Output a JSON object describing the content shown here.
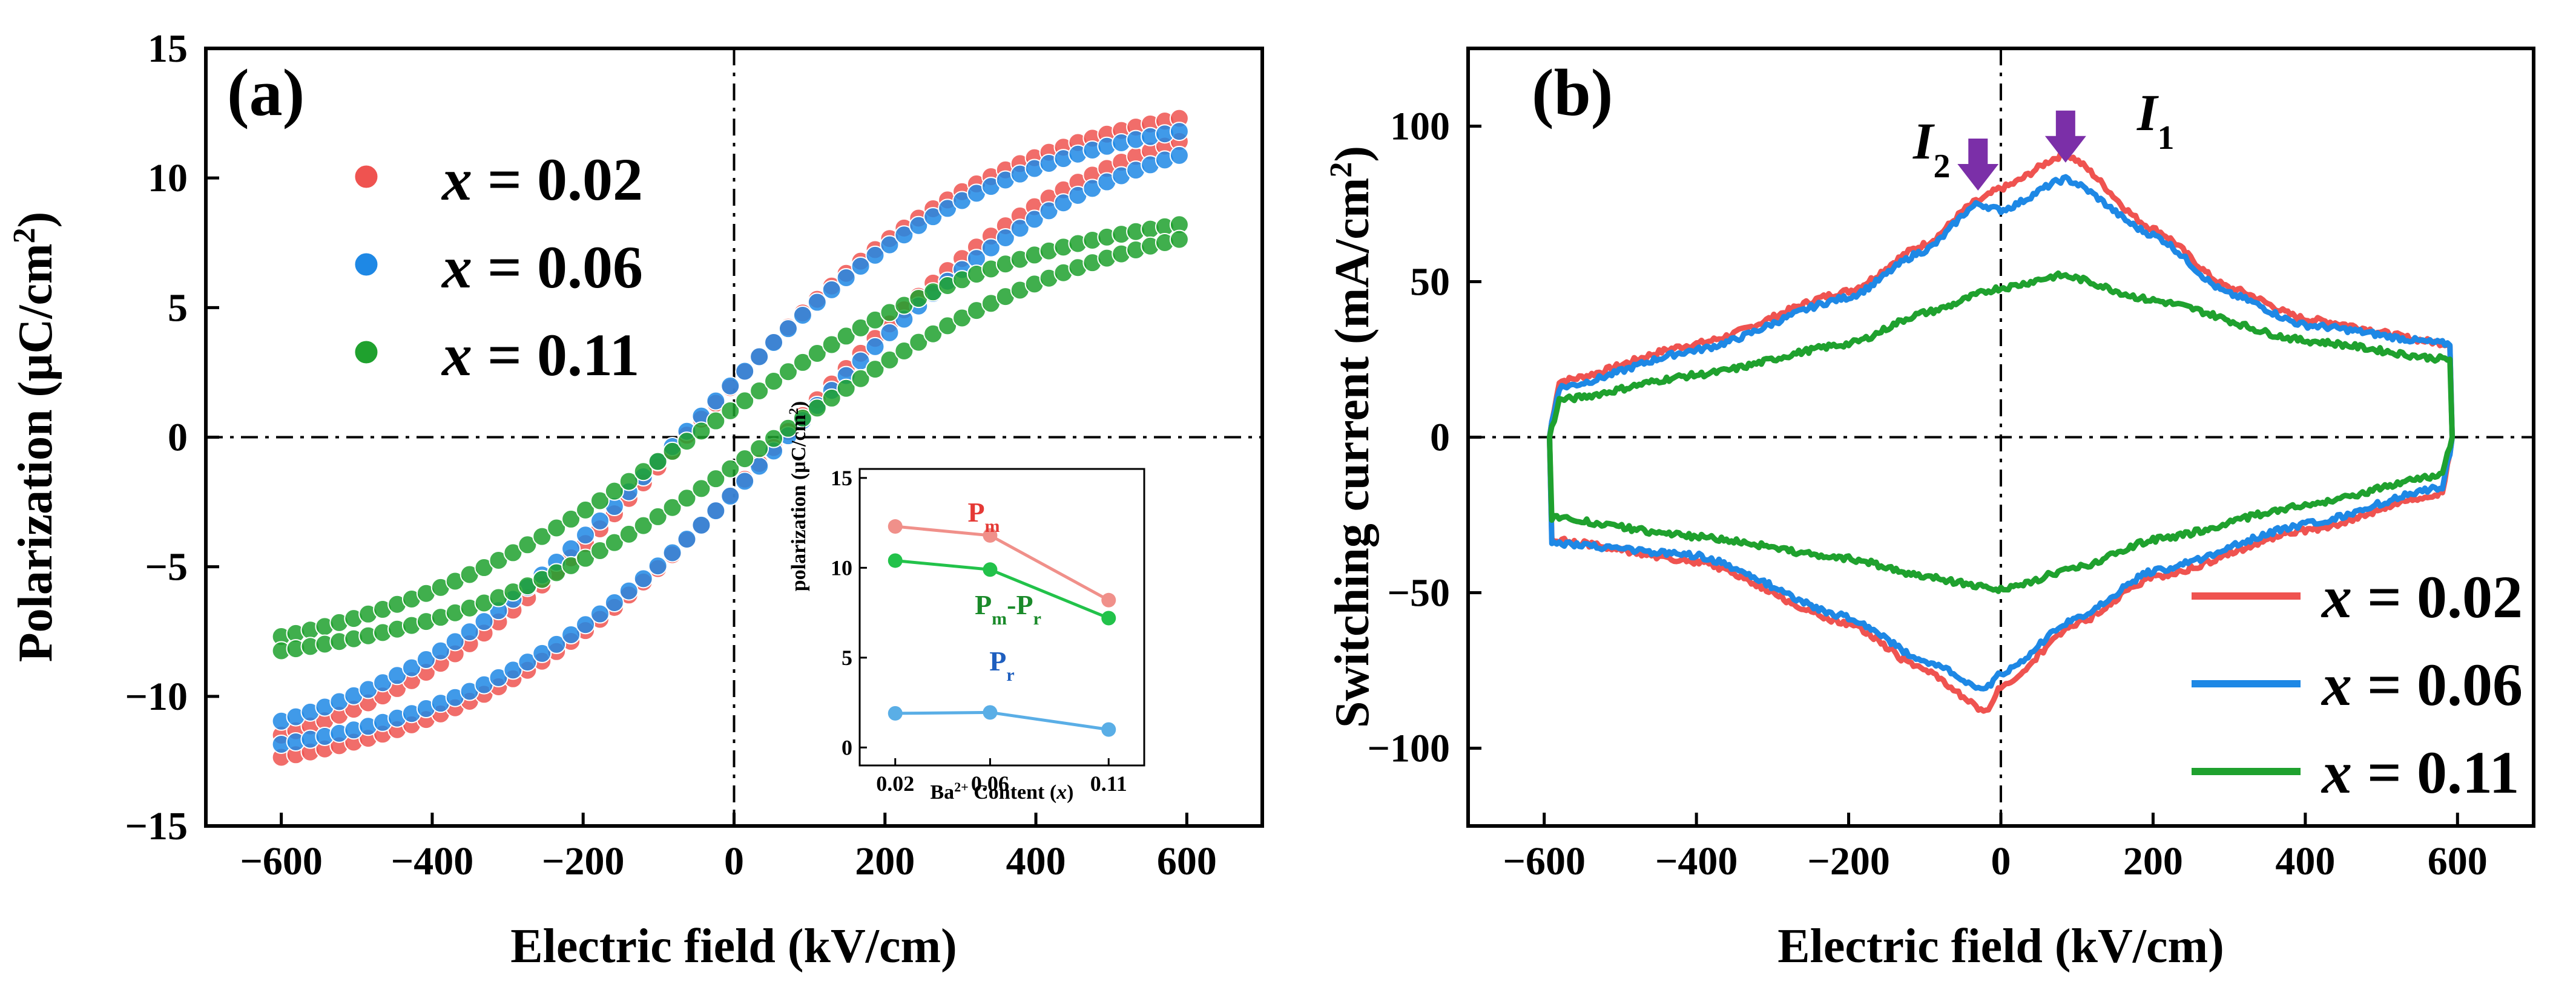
{
  "colors": {
    "red": "#ef5350",
    "blue": "#1e88e5",
    "green": "#1fa12e",
    "inset_red": "#f0908a",
    "inset_blue": "#5aaee6",
    "inset_green": "#22c24a",
    "label_red": "#e53935",
    "label_blue": "#1f5fbf",
    "label_green": "#1a8a2a",
    "arrow": "#7b2fa8"
  },
  "chart_data": [
    {
      "panel": "(a)",
      "type": "scatter",
      "title": "",
      "xlabel": "Electric field (kV/cm)",
      "ylabel": "Polarization (μC/cm²)",
      "ylabel_parts": {
        "main": "Polarization (μC/cm",
        "sup": "2",
        "close": ")"
      },
      "xlim": [
        -700,
        700
      ],
      "ylim": [
        -15,
        15
      ],
      "xticks": [
        -600,
        -400,
        -200,
        0,
        200,
        400,
        600
      ],
      "xtick_labels": [
        "−600",
        "−400",
        "−200",
        "0",
        "200",
        "400",
        "600"
      ],
      "yticks": [
        -15,
        -10,
        -5,
        0,
        5,
        10,
        15
      ],
      "ytick_labels": [
        "−15",
        "−10",
        "−5",
        "0",
        "5",
        "10",
        "15"
      ],
      "legend_position": "upper-left",
      "series": [
        {
          "name": "x = 0.02",
          "label_var": "x",
          "label_rest": " = 0.02",
          "color": "red",
          "Pm": 12.3,
          "Pr": 1.9,
          "Ec": 65
        },
        {
          "name": "x = 0.06",
          "label_var": "x",
          "label_rest": " = 0.06",
          "color": "blue",
          "Pm": 11.8,
          "Pr": 1.95,
          "Ec": 70
        },
        {
          "name": "x = 0.11",
          "label_var": "x",
          "label_rest": " = 0.11",
          "color": "green",
          "Pm": 8.2,
          "Pr": 1.0,
          "Ec": 55
        }
      ],
      "inset": {
        "type": "line",
        "xlabel": "Ba2+ Content (x)",
        "xlabel_parts": {
          "pre": "Ba",
          "sup": "2+",
          "mid": " Content (",
          "var": "x",
          "post": ")"
        },
        "ylabel": "polarization (μC/cm²)",
        "ylabel_parts": {
          "main": "polarization (μC/cm",
          "sup": "2",
          "close": ")"
        },
        "categories": [
          "0.02",
          "0.06",
          "0.11"
        ],
        "x": [
          0.02,
          0.06,
          0.11
        ],
        "xlim": [
          0.005,
          0.125
        ],
        "ylim": [
          -1,
          15.5
        ],
        "yticks": [
          0,
          5,
          10,
          15
        ],
        "ytick_labels": [
          "0",
          "5",
          "10",
          "15"
        ],
        "series": [
          {
            "name": "Pm",
            "label_main": "P",
            "label_sub": "m",
            "color": "inset_red",
            "label_color": "label_red",
            "values": [
              12.3,
              11.8,
              8.2
            ]
          },
          {
            "name": "Pm-Pr",
            "label_main": "P",
            "label_sub": "m",
            "label_mid": "-P",
            "label_sub2": "r",
            "color": "inset_green",
            "label_color": "label_green",
            "values": [
              10.4,
              9.9,
              7.2
            ]
          },
          {
            "name": "Pr",
            "label_main": "P",
            "label_sub": "r",
            "color": "inset_blue",
            "label_color": "label_blue",
            "values": [
              1.9,
              1.95,
              1.0
            ]
          }
        ]
      }
    },
    {
      "panel": "(b)",
      "type": "line",
      "title": "",
      "xlabel": "Electric field (kV/cm)",
      "ylabel": "Switching current (mA/cm²)",
      "ylabel_parts": {
        "main": "Switching current (mA/cm",
        "sup": "2",
        "close": ")"
      },
      "xlim": [
        -700,
        700
      ],
      "ylim": [
        -125,
        125
      ],
      "xticks": [
        -600,
        -400,
        -200,
        0,
        200,
        400,
        600
      ],
      "xtick_labels": [
        "−600",
        "−400",
        "−200",
        "0",
        "200",
        "400",
        "600"
      ],
      "yticks": [
        -100,
        -50,
        0,
        50,
        100
      ],
      "ytick_labels": [
        "−100",
        "−50",
        "0",
        "50",
        "100"
      ],
      "legend_position": "lower-right",
      "annotations": [
        {
          "label_main": "I",
          "label_sub": "2",
          "x": -30
        },
        {
          "label_main": "I",
          "label_sub": "1",
          "x": 85
        }
      ],
      "series": [
        {
          "name": "x = 0.02",
          "label_var": "x",
          "label_rest": " = 0.02",
          "color": "red",
          "upper": [
            [
              -590,
              5
            ],
            [
              -580,
              18
            ],
            [
              -400,
              30
            ],
            [
              -200,
              47
            ],
            [
              -100,
              62
            ],
            [
              -30,
              76
            ],
            [
              0,
              80
            ],
            [
              85,
              91
            ],
            [
              200,
              67
            ],
            [
              300,
              48
            ],
            [
              400,
              38
            ],
            [
              590,
              30
            ]
          ],
          "lower": [
            [
              590,
              -5
            ],
            [
              580,
              -18
            ],
            [
              400,
              -30
            ],
            [
              200,
              -45
            ],
            [
              100,
              -60
            ],
            [
              0,
              -80
            ],
            [
              -20,
              -88
            ],
            [
              -100,
              -75
            ],
            [
              -200,
              -60
            ],
            [
              -400,
              -40
            ],
            [
              -590,
              -33
            ]
          ]
        },
        {
          "name": "x = 0.06",
          "label_var": "x",
          "label_rest": " = 0.06",
          "color": "blue",
          "upper": [
            [
              -590,
              5
            ],
            [
              -580,
              16
            ],
            [
              -400,
              28
            ],
            [
              -200,
              45
            ],
            [
              -100,
              60
            ],
            [
              -30,
              75
            ],
            [
              0,
              73
            ],
            [
              85,
              83
            ],
            [
              200,
              65
            ],
            [
              300,
              46
            ],
            [
              400,
              36
            ],
            [
              590,
              30
            ]
          ],
          "lower": [
            [
              590,
              -5
            ],
            [
              580,
              -16
            ],
            [
              400,
              -28
            ],
            [
              200,
              -43
            ],
            [
              100,
              -58
            ],
            [
              0,
              -76
            ],
            [
              -20,
              -81
            ],
            [
              -100,
              -72
            ],
            [
              -200,
              -58
            ],
            [
              -400,
              -38
            ],
            [
              -590,
              -34
            ]
          ]
        },
        {
          "name": "x = 0.11",
          "label_var": "x",
          "label_rest": " = 0.11",
          "color": "green",
          "upper": [
            [
              -590,
              3
            ],
            [
              -580,
              12
            ],
            [
              -400,
              20
            ],
            [
              -200,
              30
            ],
            [
              -100,
              40
            ],
            [
              0,
              48
            ],
            [
              80,
              52
            ],
            [
              200,
              44
            ],
            [
              400,
              31
            ],
            [
              590,
              25
            ]
          ],
          "lower": [
            [
              590,
              -3
            ],
            [
              580,
              -12
            ],
            [
              400,
              -22
            ],
            [
              200,
              -33
            ],
            [
              100,
              -42
            ],
            [
              0,
              -49
            ],
            [
              -100,
              -45
            ],
            [
              -200,
              -39
            ],
            [
              -400,
              -32
            ],
            [
              -590,
              -26
            ]
          ]
        }
      ]
    }
  ]
}
